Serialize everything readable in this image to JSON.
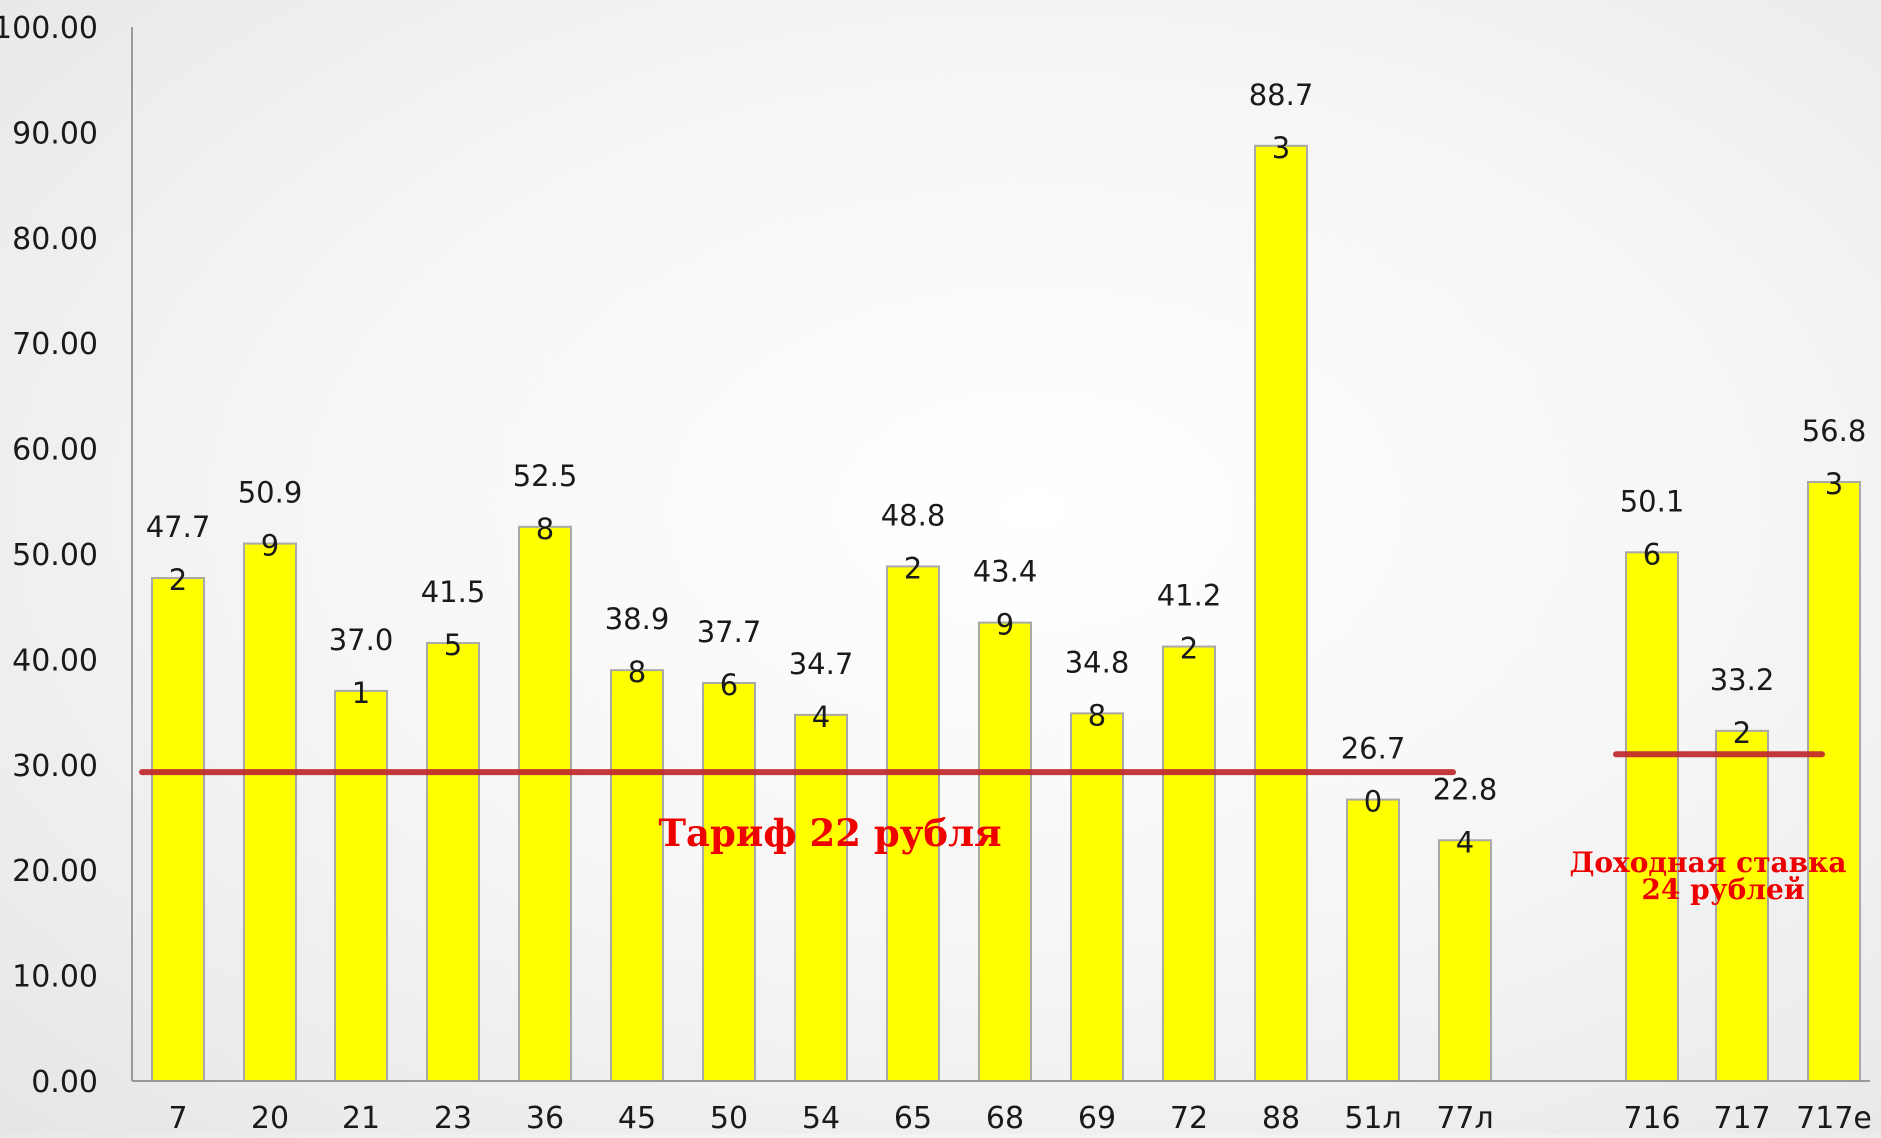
{
  "chart_data": {
    "type": "bar",
    "categories": [
      "7",
      "20",
      "21",
      "23",
      "36",
      "45",
      "50",
      "54",
      "65",
      "68",
      "69",
      "72",
      "88",
      "51л",
      "77л",
      "716",
      "717",
      "717е"
    ],
    "values": [
      47.72,
      50.99,
      37.01,
      41.55,
      52.58,
      38.98,
      37.76,
      34.74,
      48.82,
      43.49,
      34.88,
      41.22,
      88.73,
      26.7,
      22.84,
      50.16,
      33.22,
      56.83
    ],
    "value_labels": [
      [
        "47.7",
        "2"
      ],
      [
        "50.9",
        "9"
      ],
      [
        "37.0",
        "1"
      ],
      [
        "41.5",
        "5"
      ],
      [
        "52.5",
        "8"
      ],
      [
        "38.9",
        "8"
      ],
      [
        "37.7",
        "6"
      ],
      [
        "34.7",
        "4"
      ],
      [
        "48.8",
        "2"
      ],
      [
        "43.4",
        "9"
      ],
      [
        "34.8",
        "8"
      ],
      [
        "41.2",
        "2"
      ],
      [
        "88.7",
        "3"
      ],
      [
        "26.7",
        "0"
      ],
      [
        "22.8",
        "4"
      ],
      [
        "50.1",
        "6"
      ],
      [
        "33.2",
        "2"
      ],
      [
        "56.8",
        "3"
      ]
    ],
    "y_tick_labels": [
      "0.00",
      "10.00",
      "20.00",
      "30.00",
      "40.00",
      "50.00",
      "60.00",
      "70.00",
      "80.00",
      "90.00",
      "100.00"
    ],
    "ylim": [
      0,
      100
    ],
    "bar_color": "#ffff00",
    "bar_border_color": "#a8a8a8",
    "grid": false,
    "reference_lines": [
      {
        "value": 29.3,
        "from_category": "7",
        "to_category": "77л",
        "color": "#c0282d",
        "label": "Тариф 22 рубля"
      },
      {
        "value": 31.0,
        "from_category": "716",
        "to_category": "717е",
        "color": "#c0282d",
        "label": "Доходная ставка 24 рублей"
      }
    ],
    "annotation_color": "#ee0000"
  },
  "annotations": {
    "tariff_label": "Тариф 22 рубля",
    "rate_label_line1": "Доходная ставка",
    "rate_label_line2": "24 рублей"
  }
}
